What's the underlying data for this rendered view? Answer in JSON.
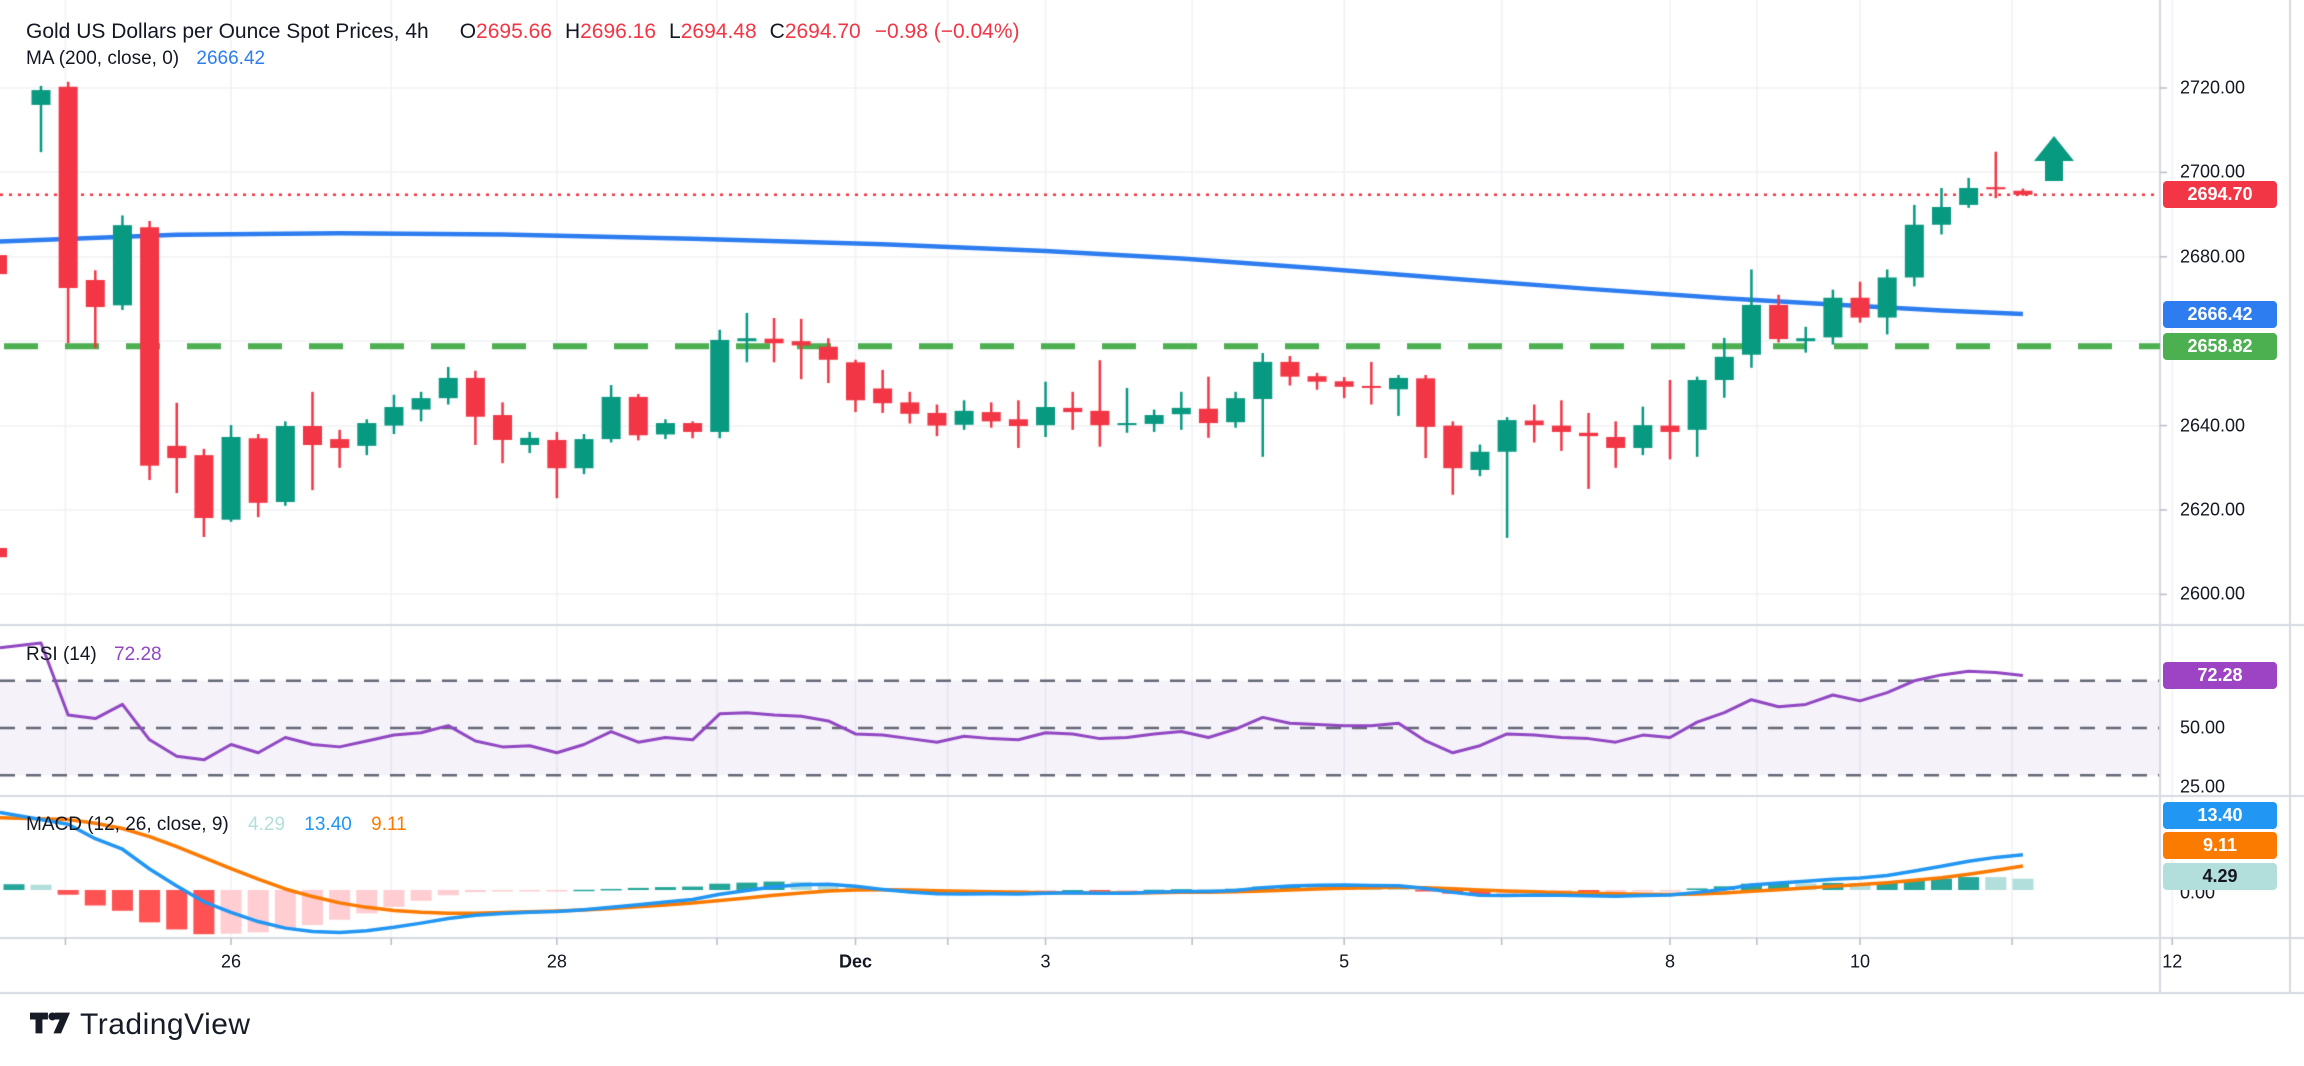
{
  "header": {
    "title": "Gold US Dollars per Ounce Spot Prices, 4h",
    "ohlc": {
      "o_label": "O",
      "o": "2695.66",
      "h_label": "H",
      "h": "2696.16",
      "l_label": "L",
      "l": "2694.48",
      "c_label": "C",
      "c": "2694.70",
      "change": "−0.98 (−0.04%)"
    },
    "ma_legend": {
      "label": "MA (200, close, 0)",
      "value": "2666.42"
    }
  },
  "panes": {
    "rsi": {
      "label": "RSI (14)",
      "value": "72.28"
    },
    "macd": {
      "label": "MACD (12, 26, close, 9)",
      "hist_value": "4.29",
      "macd_value": "13.40",
      "signal_value": "9.11"
    }
  },
  "price_axis": {
    "labels": [
      {
        "text": "2720.00",
        "price": 2720
      },
      {
        "text": "2700.00",
        "price": 2700
      },
      {
        "text": "2680.00",
        "price": 2680
      },
      {
        "text": "2640.00",
        "price": 2640
      },
      {
        "text": "2620.00",
        "price": 2620
      },
      {
        "text": "2600.00",
        "price": 2600
      }
    ],
    "badges": {
      "last": {
        "text": "2694.70",
        "price": 2694.7,
        "color": "#f23645"
      },
      "ma": {
        "text": "2666.42",
        "price": 2666.42,
        "color": "#2d7df0"
      },
      "level": {
        "text": "2658.82",
        "price": 2658.82,
        "color": "#4caf50"
      }
    }
  },
  "rsi_axis": {
    "labels": [
      {
        "text": "50.00",
        "value": 50
      },
      {
        "text": "25.00",
        "value": 25
      }
    ],
    "badge": {
      "text": "72.28",
      "value": 72.28,
      "color": "#9c44c4"
    }
  },
  "macd_axis": {
    "zero_label": "0.00",
    "badges": [
      {
        "text": "13.40",
        "color": "#2196f3",
        "text_color": "#ffffff"
      },
      {
        "text": "9.11",
        "color": "#fb7a00",
        "text_color": "#ffffff"
      },
      {
        "text": "4.29",
        "color": "#b2dfdb",
        "text_color": "#131722"
      }
    ]
  },
  "time_axis": {
    "ticks": [
      {
        "i": 7,
        "label": "26",
        "bold": false
      },
      {
        "i": 19,
        "label": "28",
        "bold": false
      },
      {
        "i": 30,
        "label": "Dec",
        "bold": true
      },
      {
        "i": 37,
        "label": "3",
        "bold": false
      },
      {
        "i": 48,
        "label": "5",
        "bold": false
      },
      {
        "i": 60,
        "label": "8",
        "bold": false
      },
      {
        "i": 67,
        "label": "10",
        "bold": false
      },
      {
        "i": 78.5,
        "label": "12",
        "bold": false
      }
    ],
    "minor_day_indices": [
      0.9,
      12.9,
      24.9,
      33.4,
      42.4,
      53.8,
      63.2,
      72.6
    ]
  },
  "logo": {
    "text": "TradingView"
  },
  "colors": {
    "up": "#089981",
    "down": "#f23645",
    "ma_line": "#2d7df0",
    "dotted_last": "#f23645",
    "dashed_level": "#4caf50",
    "rsi_line": "#9147c2",
    "rsi_band_fill": "rgba(126,87,194,0.08)",
    "rsi_band_line": "#646876",
    "macd_line": "#2196f3",
    "signal_line": "#fb7a00",
    "hist_up": "#26a69a",
    "hist_up_pale": "#b2dfdb",
    "hist_down": "#ff5252",
    "hist_down_pale": "#ffcdd2",
    "grid": "#f0f2f6",
    "axis_border": "#d7dae2",
    "text": "#131722",
    "marker": "#089981"
  },
  "chart_data": {
    "type": "candlestick-with-indicators",
    "title": "Gold US Dollars per Ounce Spot Prices",
    "timeframe": "4h",
    "price_ylim": [
      2597,
      2734
    ],
    "rsi_guides": [
      70,
      50,
      30
    ],
    "levels": {
      "last_price_dotted": 2694.7,
      "support_dashed": 2658.82
    },
    "marker": {
      "type": "arrow-up",
      "price_y": 2702,
      "note": "green up arrow above last bars"
    },
    "partial_bars_left_edge": [
      {
        "y_top_price": 2680.4,
        "y_bot_price": 2675.9
      },
      {
        "y_top_price": 2611.0,
        "y_bot_price": 2608.8
      }
    ],
    "candles_ohlc": [
      [
        2716.0,
        2720.5,
        2704.8,
        2719.5
      ],
      [
        2720.3,
        2721.5,
        2659.5,
        2672.6
      ],
      [
        2674.5,
        2676.8,
        2658.4,
        2668.1
      ],
      [
        2668.5,
        2689.8,
        2667.4,
        2687.5
      ],
      [
        2687.0,
        2688.5,
        2627.1,
        2630.5
      ],
      [
        2635.2,
        2645.4,
        2624.0,
        2632.3
      ],
      [
        2633.0,
        2634.5,
        2613.6,
        2618.1
      ],
      [
        2617.7,
        2640.1,
        2617.2,
        2637.3
      ],
      [
        2637.0,
        2638.0,
        2618.3,
        2621.7
      ],
      [
        2621.9,
        2641.0,
        2621.0,
        2639.9
      ],
      [
        2639.9,
        2648.0,
        2624.7,
        2635.4
      ],
      [
        2636.8,
        2639.0,
        2630.0,
        2634.7
      ],
      [
        2635.2,
        2641.5,
        2633.0,
        2640.6
      ],
      [
        2640.0,
        2647.3,
        2638.0,
        2644.4
      ],
      [
        2643.8,
        2648.0,
        2641.0,
        2646.5
      ],
      [
        2646.5,
        2653.9,
        2645.0,
        2651.3
      ],
      [
        2651.3,
        2653.0,
        2635.4,
        2642.1
      ],
      [
        2642.5,
        2645.5,
        2631.1,
        2636.6
      ],
      [
        2635.4,
        2638.5,
        2633.5,
        2637.1
      ],
      [
        2636.6,
        2638.5,
        2622.8,
        2629.9
      ],
      [
        2629.9,
        2638.0,
        2628.5,
        2636.8
      ],
      [
        2636.8,
        2649.6,
        2636.0,
        2646.8
      ],
      [
        2646.8,
        2647.5,
        2636.5,
        2637.7
      ],
      [
        2637.9,
        2641.5,
        2636.8,
        2640.6
      ],
      [
        2640.6,
        2641.0,
        2637.0,
        2638.5
      ],
      [
        2638.5,
        2662.7,
        2637.0,
        2660.3
      ],
      [
        2660.0,
        2666.7,
        2655.0,
        2660.7
      ],
      [
        2660.6,
        2665.5,
        2655.0,
        2659.5
      ],
      [
        2660.0,
        2665.3,
        2651.0,
        2659.0
      ],
      [
        2658.7,
        2660.7,
        2650.1,
        2655.6
      ],
      [
        2655.0,
        2655.6,
        2643.2,
        2646.0
      ],
      [
        2648.8,
        2653.2,
        2643.0,
        2645.3
      ],
      [
        2645.5,
        2648.0,
        2640.5,
        2642.8
      ],
      [
        2643.0,
        2645.0,
        2637.5,
        2640.0
      ],
      [
        2640.2,
        2646.0,
        2639.0,
        2643.5
      ],
      [
        2643.2,
        2645.5,
        2639.5,
        2641.0
      ],
      [
        2641.5,
        2646.0,
        2634.7,
        2639.9
      ],
      [
        2640.1,
        2650.4,
        2637.3,
        2644.4
      ],
      [
        2644.2,
        2648.0,
        2639.0,
        2643.2
      ],
      [
        2643.5,
        2655.5,
        2635.0,
        2640.1
      ],
      [
        2640.3,
        2648.9,
        2638.3,
        2640.6
      ],
      [
        2640.4,
        2643.8,
        2638.5,
        2642.5
      ],
      [
        2642.7,
        2648.0,
        2639.0,
        2644.2
      ],
      [
        2644.0,
        2651.6,
        2637.1,
        2640.6
      ],
      [
        2640.8,
        2648.0,
        2639.5,
        2646.5
      ],
      [
        2646.3,
        2657.2,
        2632.6,
        2655.1
      ],
      [
        2655.1,
        2656.5,
        2649.5,
        2651.6
      ],
      [
        2651.7,
        2652.5,
        2648.5,
        2650.4
      ],
      [
        2650.5,
        2651.5,
        2646.5,
        2649.2
      ],
      [
        2649.4,
        2655.1,
        2645.0,
        2649.2
      ],
      [
        2648.6,
        2652.0,
        2642.3,
        2651.3
      ],
      [
        2651.2,
        2652.0,
        2632.3,
        2639.7
      ],
      [
        2640.0,
        2641.0,
        2623.6,
        2629.9
      ],
      [
        2629.5,
        2635.5,
        2628.0,
        2633.8
      ],
      [
        2633.8,
        2642.0,
        2613.4,
        2641.3
      ],
      [
        2641.2,
        2645.0,
        2636.0,
        2640.1
      ],
      [
        2640.0,
        2646.0,
        2634.0,
        2638.5
      ],
      [
        2638.3,
        2643.0,
        2625.0,
        2637.5
      ],
      [
        2637.3,
        2641.0,
        2630.0,
        2634.7
      ],
      [
        2634.7,
        2644.5,
        2633.0,
        2640.1
      ],
      [
        2640.0,
        2650.8,
        2632.0,
        2638.5
      ],
      [
        2639.0,
        2651.6,
        2632.6,
        2650.8
      ],
      [
        2650.8,
        2660.8,
        2646.6,
        2656.3
      ],
      [
        2656.8,
        2677.0,
        2653.7,
        2668.6
      ],
      [
        2668.6,
        2671.0,
        2659.7,
        2660.5
      ],
      [
        2660.0,
        2663.4,
        2657.3,
        2660.7
      ],
      [
        2660.9,
        2672.2,
        2659.2,
        2670.3
      ],
      [
        2670.3,
        2674.1,
        2664.4,
        2665.6
      ],
      [
        2665.6,
        2677.0,
        2661.6,
        2675.1
      ],
      [
        2675.1,
        2692.3,
        2673.0,
        2687.6
      ],
      [
        2687.6,
        2696.3,
        2685.3,
        2691.8
      ],
      [
        2692.3,
        2698.7,
        2691.6,
        2696.3
      ],
      [
        2696.5,
        2704.9,
        2693.9,
        2696.0
      ],
      [
        2695.66,
        2696.16,
        2694.48,
        2694.7
      ]
    ],
    "ma200_anchors": [
      [
        0,
        2683.6
      ],
      [
        5,
        2685.2
      ],
      [
        11,
        2685.6
      ],
      [
        17,
        2685.3
      ],
      [
        24,
        2684.3
      ],
      [
        31,
        2683.0
      ],
      [
        37,
        2681.4
      ],
      [
        42,
        2679.6
      ],
      [
        47,
        2677.3
      ],
      [
        52,
        2674.8
      ],
      [
        57,
        2672.4
      ],
      [
        62,
        2670.2
      ],
      [
        66,
        2668.7
      ],
      [
        70,
        2667.3
      ],
      [
        73,
        2666.42
      ]
    ],
    "rsi": [
      86,
      55.5,
      54,
      60,
      45,
      38,
      36.5,
      43,
      39.5,
      46,
      43,
      42,
      44.5,
      47,
      48,
      51,
      44.5,
      42,
      42.5,
      39.5,
      43,
      48.5,
      44,
      46,
      45,
      56,
      56.5,
      55.5,
      55,
      53,
      47.5,
      47,
      45.5,
      44,
      46.5,
      45.5,
      45,
      48,
      47.5,
      45.5,
      46,
      47.5,
      48.5,
      46,
      49.5,
      54.5,
      52,
      51.5,
      51,
      51,
      52,
      44.5,
      39.5,
      42.5,
      47.5,
      47,
      46,
      45.5,
      44,
      47,
      46,
      52.5,
      56.5,
      62,
      59,
      60,
      64,
      61.5,
      65,
      70,
      72.5,
      74,
      73.5,
      72.28
    ],
    "rsi_pre": 84,
    "macd": [
      29.5,
      25.0,
      19.5,
      15.5,
      8.0,
      1.5,
      -4.5,
      -8.5,
      -12.0,
      -14.5,
      -15.8,
      -16.2,
      -15.5,
      -14.2,
      -12.6,
      -10.8,
      -9.6,
      -8.9,
      -8.5,
      -8.2,
      -7.5,
      -6.6,
      -5.6,
      -4.6,
      -3.6,
      -1.6,
      -0.2,
      1.2,
      2.0,
      2.2,
      1.4,
      0.2,
      -0.8,
      -1.4,
      -1.5,
      -1.4,
      -1.5,
      -1.2,
      -1.0,
      -1.2,
      -1.2,
      -0.9,
      -0.6,
      -0.6,
      -0.2,
      0.9,
      1.5,
      1.8,
      1.9,
      1.7,
      1.6,
      0.6,
      -0.9,
      -2.0,
      -2.1,
      -1.9,
      -2.0,
      -2.2,
      -2.4,
      -2.1,
      -1.9,
      -0.9,
      0.3,
      1.9,
      2.7,
      3.3,
      4.1,
      4.6,
      5.5,
      7.2,
      9.0,
      10.9,
      12.4,
      13.4
    ],
    "signal": [
      27.5,
      26.8,
      25.4,
      23.4,
      20.3,
      16.5,
      12.3,
      8.1,
      4.1,
      0.4,
      -2.5,
      -4.9,
      -6.6,
      -7.8,
      -8.5,
      -8.8,
      -8.8,
      -8.6,
      -8.3,
      -8.0,
      -7.6,
      -7.0,
      -6.4,
      -5.7,
      -4.9,
      -4.0,
      -3.0,
      -2.0,
      -1.1,
      -0.4,
      0.0,
      0.1,
      0.0,
      -0.3,
      -0.5,
      -0.7,
      -0.9,
      -1.0,
      -1.0,
      -1.1,
      -1.1,
      -1.0,
      -0.9,
      -0.9,
      -0.7,
      -0.4,
      0.0,
      0.4,
      0.7,
      0.9,
      1.0,
      0.9,
      0.5,
      0.0,
      -0.4,
      -0.7,
      -1.0,
      -1.2,
      -1.4,
      -1.6,
      -1.7,
      -1.5,
      -1.1,
      -0.5,
      0.1,
      0.8,
      1.4,
      2.1,
      2.8,
      3.7,
      4.7,
      6.0,
      7.5,
      9.11
    ],
    "macd_pre": {
      "hist": 2.2
    }
  }
}
